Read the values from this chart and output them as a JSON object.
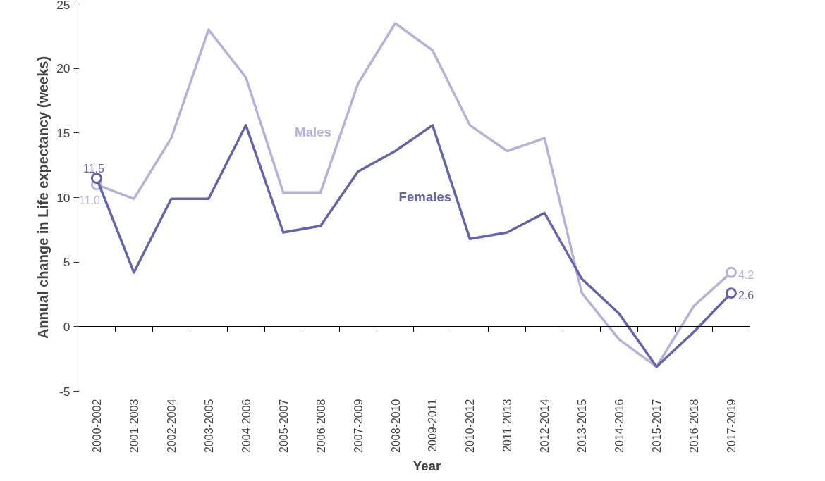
{
  "chart_data": {
    "type": "line",
    "xlabel": "Year",
    "ylabel": "Annual change in Life expectancy (weeks)",
    "categories": [
      "2000-2002",
      "2001-2003",
      "2002-2004",
      "2003-2005",
      "2004-2006",
      "2005-2007",
      "2006-2008",
      "2007-2009",
      "2008-2010",
      "2009-2011",
      "2010-2012",
      "2011-2013",
      "2012-2014",
      "2013-2015",
      "2014-2016",
      "2015-2017",
      "2016-2018",
      "2017-2019"
    ],
    "series": [
      {
        "name": "Males",
        "color": "#b3b3d9",
        "values": [
          11.0,
          9.9,
          14.6,
          23.0,
          19.3,
          10.4,
          10.4,
          18.8,
          23.5,
          21.4,
          15.6,
          13.6,
          14.6,
          2.6,
          -1.0,
          -3.1,
          1.6,
          4.2
        ],
        "value_labels": [
          "11.0",
          null,
          null,
          null,
          null,
          null,
          null,
          null,
          null,
          null,
          null,
          null,
          null,
          null,
          null,
          null,
          null,
          "4.2"
        ]
      },
      {
        "name": "Females",
        "color": "#6464ad",
        "values": [
          11.5,
          4.2,
          9.9,
          9.9,
          15.6,
          7.3,
          7.8,
          12.0,
          13.6,
          15.6,
          6.8,
          7.3,
          8.8,
          3.7,
          1.0,
          -3.1,
          -0.4,
          2.6
        ],
        "value_labels": [
          "11.5",
          null,
          null,
          null,
          null,
          null,
          null,
          null,
          null,
          null,
          null,
          null,
          null,
          null,
          null,
          null,
          null,
          "2.6"
        ]
      }
    ],
    "ylim": [
      -5,
      25
    ],
    "yticks": [
      -5,
      0,
      5,
      10,
      15,
      20,
      25
    ],
    "line_style": "solid"
  }
}
